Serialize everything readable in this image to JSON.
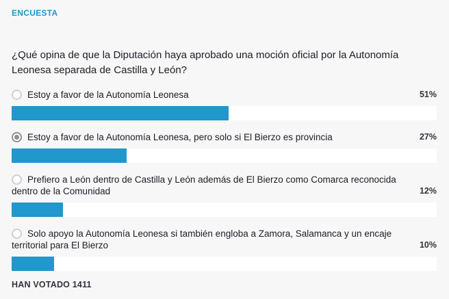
{
  "header": {
    "title": "ENCUESTA"
  },
  "question": "¿Qué opina de que la Diputación haya aprobado una moción oficial por la Autonomía Leonesa separada de Castilla y León?",
  "options": [
    {
      "label": "Estoy a favor de la Autonomía Leonesa",
      "percent": "51%",
      "value": 51,
      "selected": false
    },
    {
      "label": "Estoy a favor de la Autonomía Leonesa, pero solo si El Bierzo es provincia",
      "percent": "27%",
      "value": 27,
      "selected": true
    },
    {
      "label": "Prefiero a León dentro de Castilla y León además de El Bierzo como Comarca reconocida dentro de la Comunidad",
      "percent": "12%",
      "value": 12,
      "selected": false
    },
    {
      "label": "Solo apoyo la Autonomía Leonesa si también engloba a Zamora, Salamanca y un encaje territorial para El Bierzo",
      "percent": "10%",
      "value": 10,
      "selected": false
    }
  ],
  "footer": {
    "votes_label": "HAN VOTADO 1411"
  },
  "colors": {
    "accent": "#2098cb",
    "header_text": "#2196c9",
    "background": "#f7f7f8",
    "bar_track": "#ffffff",
    "text": "#1c1c24"
  },
  "chart_data": {
    "type": "bar",
    "title": "¿Qué opina de que la Diputación haya aprobado una moción oficial por la Autonomía Leonesa separada de Castilla y León?",
    "categories": [
      "Estoy a favor de la Autonomía Leonesa",
      "Estoy a favor de la Autonomía Leonesa, pero solo si El Bierzo es provincia",
      "Prefiero a León dentro de Castilla y León además de El Bierzo como Comarca reconocida dentro de la Comunidad",
      "Solo apoyo la Autonomía Leonesa si también engloba a Zamora, Salamanca y un encaje territorial para El Bierzo"
    ],
    "values": [
      51,
      27,
      12,
      10
    ],
    "unit": "%",
    "xlim": [
      0,
      100
    ],
    "total_votes_text": "HAN VOTADO 1411"
  }
}
